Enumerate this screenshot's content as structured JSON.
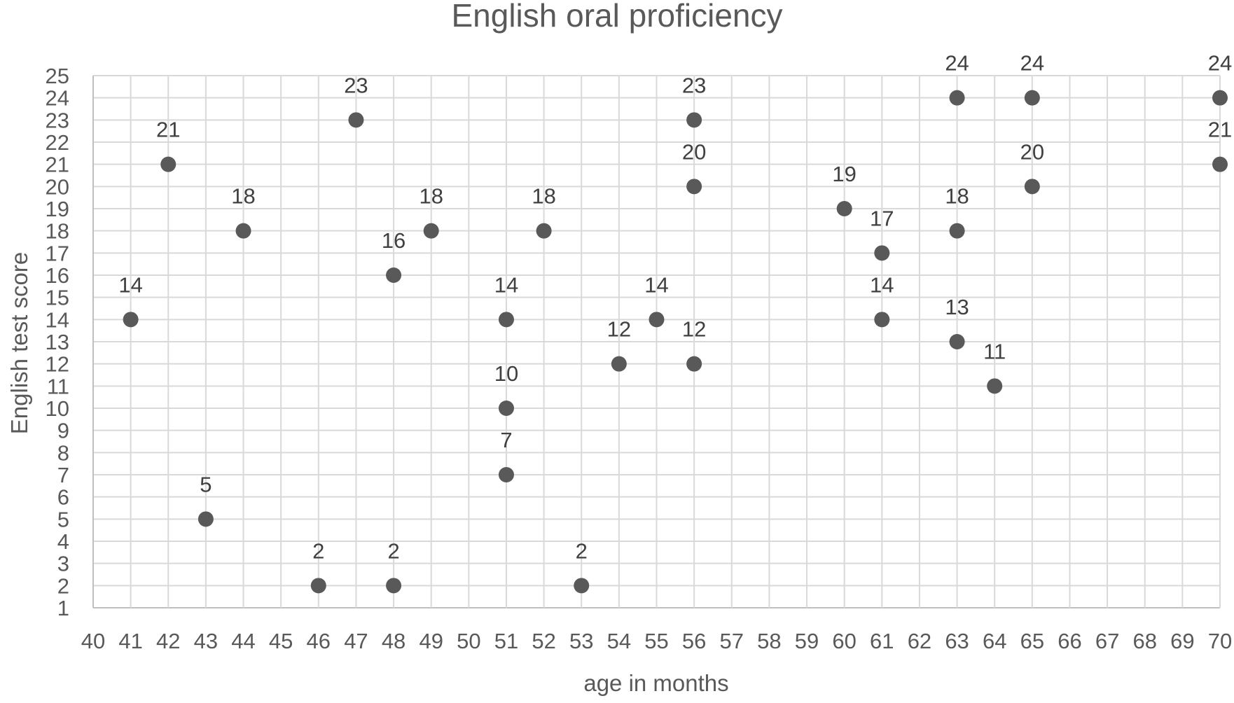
{
  "chart_data": {
    "type": "scatter",
    "title": "English oral proficiency",
    "xlabel": "age in months",
    "ylabel": "English test score",
    "xlim": [
      40,
      70
    ],
    "ylim": [
      1,
      25
    ],
    "xstep": 1,
    "ystep": 1,
    "grid": true,
    "legend": "none",
    "data_labels": true,
    "colors": {
      "marker": "#595959",
      "grid": "#d9d9d9",
      "text": "#595959"
    },
    "points": [
      {
        "x": 41,
        "y": 14
      },
      {
        "x": 42,
        "y": 21
      },
      {
        "x": 43,
        "y": 5
      },
      {
        "x": 44,
        "y": 18
      },
      {
        "x": 46,
        "y": 2
      },
      {
        "x": 47,
        "y": 23
      },
      {
        "x": 48,
        "y": 16
      },
      {
        "x": 48,
        "y": 2
      },
      {
        "x": 49,
        "y": 18
      },
      {
        "x": 51,
        "y": 14
      },
      {
        "x": 51,
        "y": 10
      },
      {
        "x": 51,
        "y": 7
      },
      {
        "x": 52,
        "y": 18
      },
      {
        "x": 53,
        "y": 2
      },
      {
        "x": 54,
        "y": 12
      },
      {
        "x": 55,
        "y": 14
      },
      {
        "x": 56,
        "y": 23
      },
      {
        "x": 56,
        "y": 20
      },
      {
        "x": 56,
        "y": 12
      },
      {
        "x": 60,
        "y": 19
      },
      {
        "x": 61,
        "y": 17
      },
      {
        "x": 61,
        "y": 14
      },
      {
        "x": 63,
        "y": 24
      },
      {
        "x": 63,
        "y": 18
      },
      {
        "x": 63,
        "y": 13
      },
      {
        "x": 64,
        "y": 11
      },
      {
        "x": 65,
        "y": 24
      },
      {
        "x": 65,
        "y": 20
      },
      {
        "x": 70,
        "y": 24
      },
      {
        "x": 70,
        "y": 21
      }
    ]
  }
}
